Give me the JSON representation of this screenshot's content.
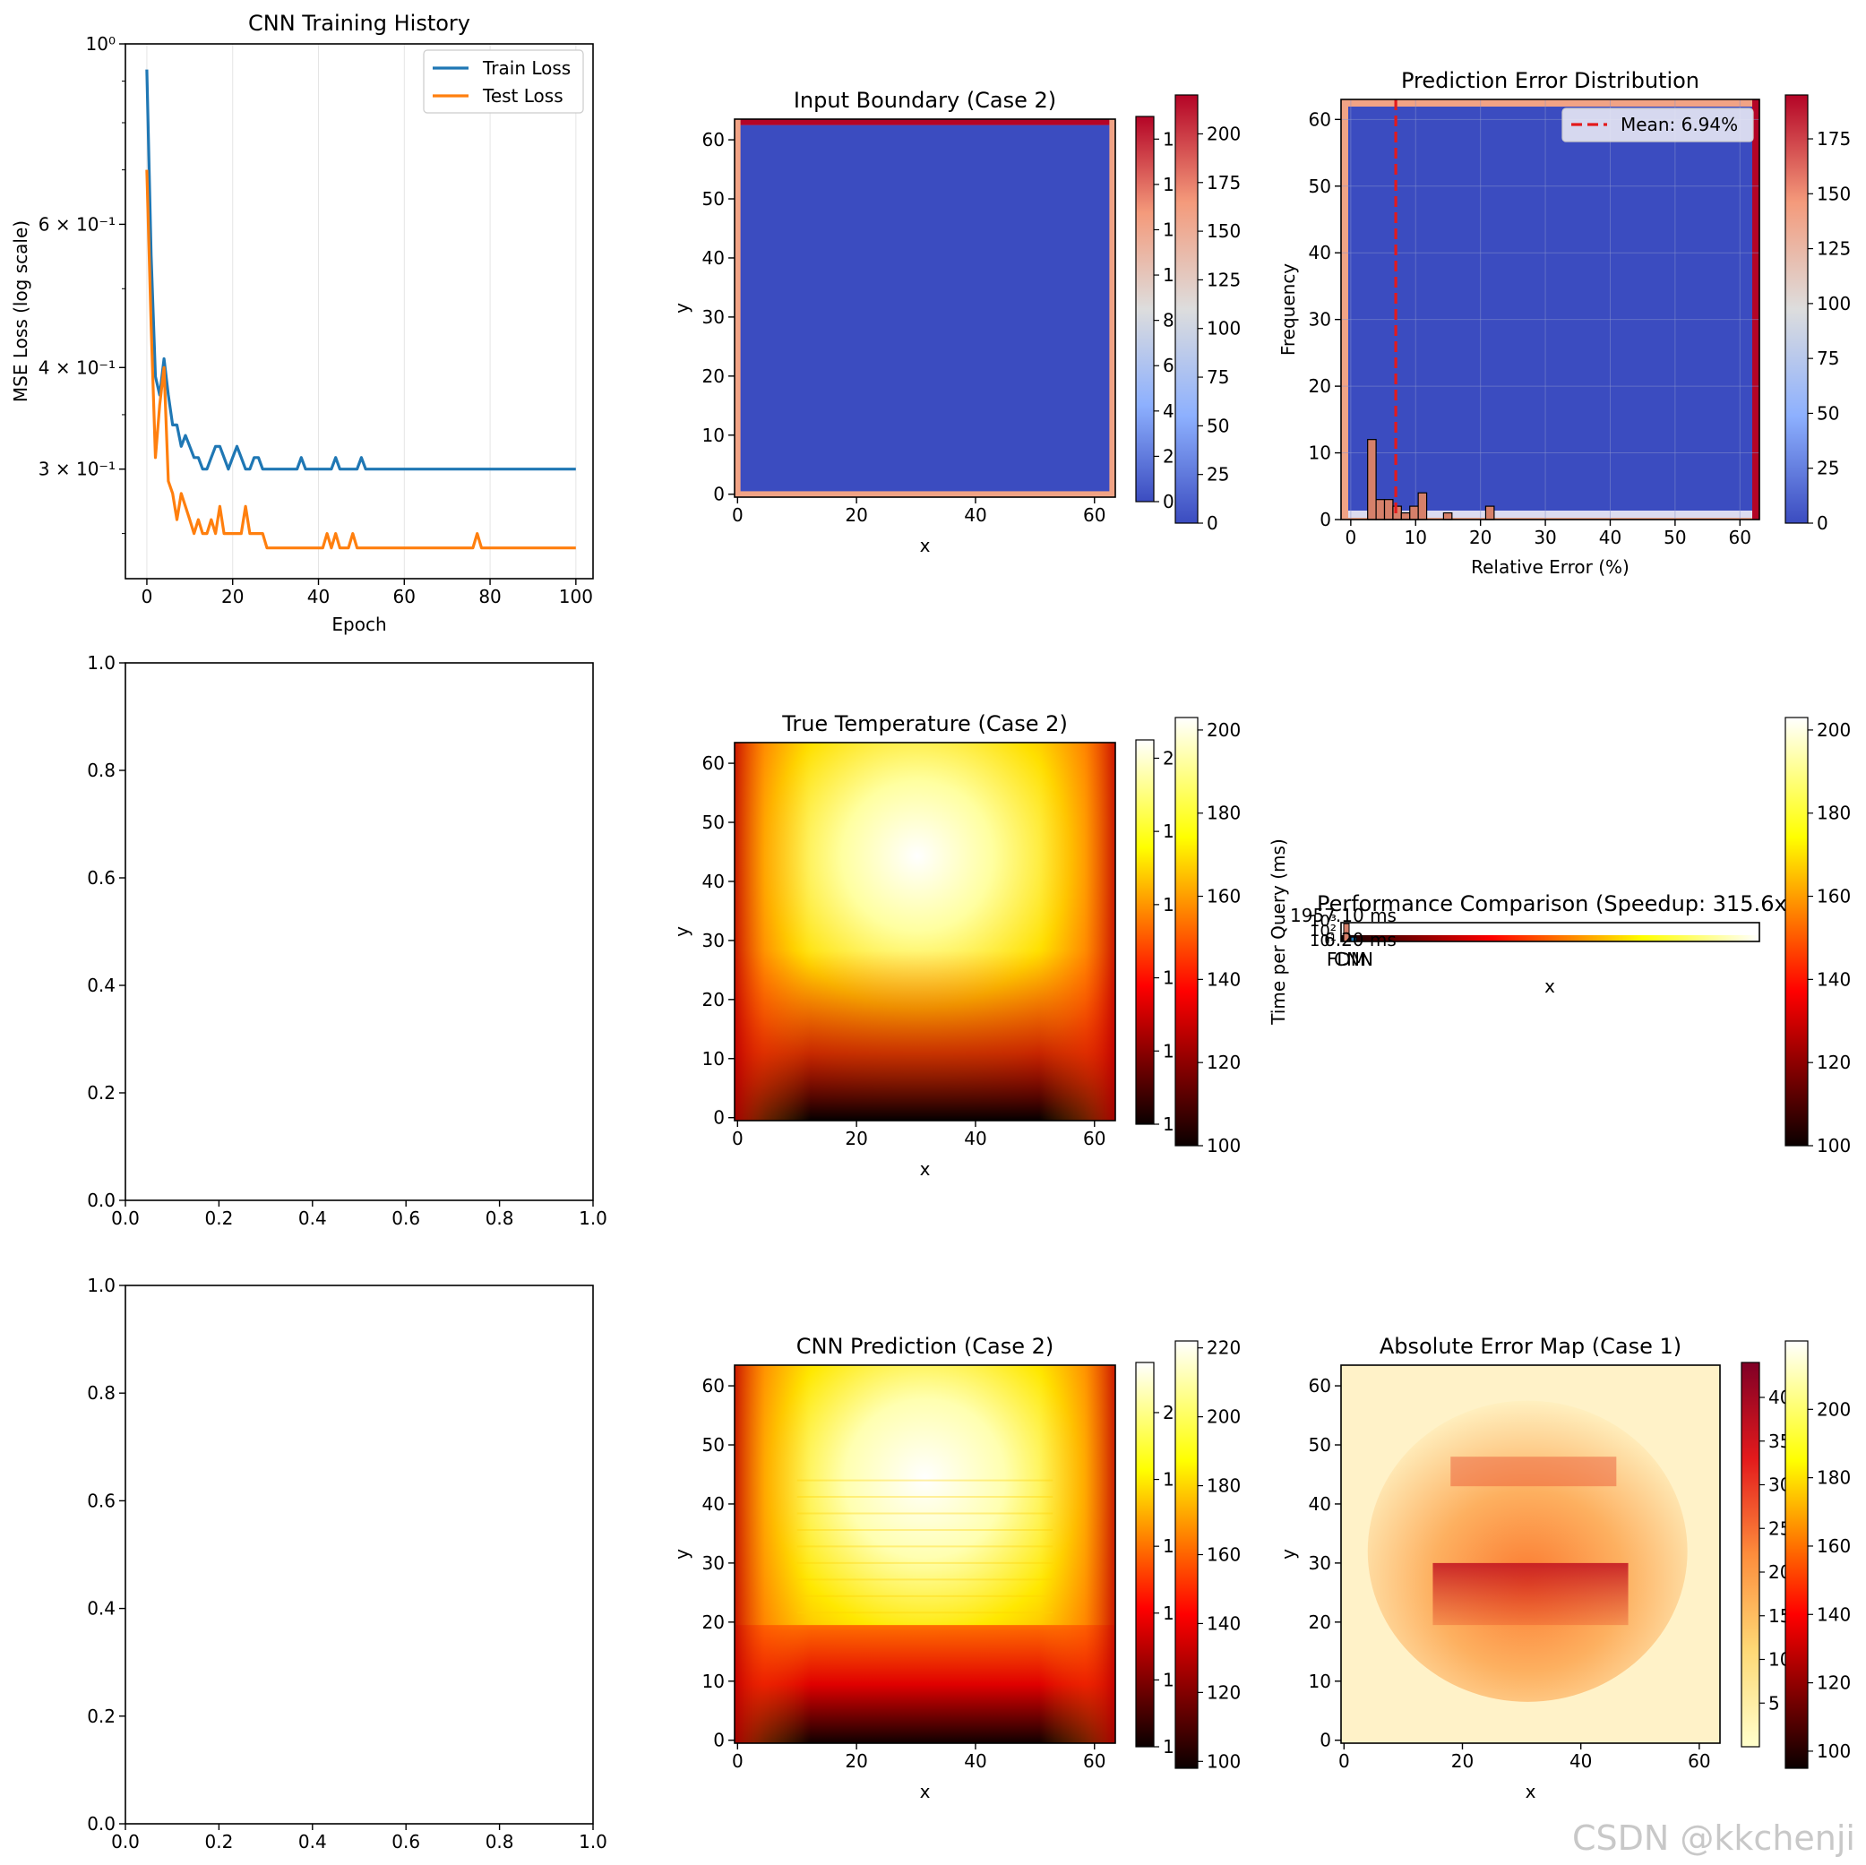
{
  "watermark": "CSDN @kkchenji",
  "colors": {
    "train": "#1f77b4",
    "test": "#ff7f0e",
    "boundary_blue": "#3b4cc0",
    "boundary_salmon": "#f1a385",
    "boundary_red": "#b40426",
    "mean_line": "#e31a1c",
    "hist_bar": "#d6806a",
    "ref_bar": "#1f77b4"
  },
  "chart_data": [
    {
      "id": "training",
      "type": "line",
      "title": "CNN Training History",
      "xlabel": "Epoch",
      "ylabel": "MSE Loss (log scale)",
      "yscale": "log",
      "xlim": [
        -5,
        104
      ],
      "ylim": [
        0.22,
        1.0
      ],
      "xticks": [
        0,
        20,
        40,
        60,
        80,
        100
      ],
      "yticks": [
        {
          "value": 1.0,
          "label": "10⁰"
        },
        {
          "value": 0.6,
          "label": "6 × 10⁻¹"
        },
        {
          "value": 0.4,
          "label": "4 × 10⁻¹"
        },
        {
          "value": 0.3,
          "label": "3 × 10⁻¹"
        }
      ],
      "grid": "x",
      "legend": "upper-right",
      "series": [
        {
          "name": "Train Loss",
          "values": [
            0.93,
            0.55,
            0.39,
            0.37,
            0.41,
            0.37,
            0.34,
            0.34,
            0.32,
            0.33,
            0.32,
            0.31,
            0.31,
            0.3,
            0.3,
            0.31,
            0.32,
            0.32,
            0.31,
            0.3,
            0.31,
            0.32,
            0.31,
            0.3,
            0.3,
            0.31,
            0.31,
            0.3,
            0.3,
            0.3,
            0.3,
            0.3,
            0.3,
            0.3,
            0.3,
            0.3,
            0.31,
            0.3,
            0.3,
            0.3,
            0.3,
            0.3,
            0.3,
            0.3,
            0.31,
            0.3,
            0.3,
            0.3,
            0.3,
            0.3,
            0.31,
            0.3,
            0.3,
            0.3,
            0.3,
            0.3,
            0.3,
            0.3,
            0.3,
            0.3,
            0.3,
            0.3,
            0.3,
            0.3,
            0.3,
            0.3,
            0.3,
            0.3,
            0.3,
            0.3,
            0.3,
            0.3,
            0.3,
            0.3,
            0.3,
            0.3,
            0.3,
            0.3,
            0.3,
            0.3,
            0.3,
            0.3,
            0.3,
            0.3,
            0.3,
            0.3,
            0.3,
            0.3,
            0.3,
            0.3,
            0.3,
            0.3,
            0.3,
            0.3,
            0.3,
            0.3,
            0.3,
            0.3,
            0.3,
            0.3,
            0.3
          ]
        },
        {
          "name": "Test Loss",
          "values": [
            0.7,
            0.45,
            0.31,
            0.36,
            0.4,
            0.29,
            0.28,
            0.26,
            0.28,
            0.27,
            0.26,
            0.25,
            0.26,
            0.25,
            0.25,
            0.26,
            0.25,
            0.27,
            0.25,
            0.25,
            0.25,
            0.25,
            0.25,
            0.27,
            0.25,
            0.25,
            0.25,
            0.25,
            0.24,
            0.24,
            0.24,
            0.24,
            0.24,
            0.24,
            0.24,
            0.24,
            0.24,
            0.24,
            0.24,
            0.24,
            0.24,
            0.24,
            0.25,
            0.24,
            0.25,
            0.24,
            0.24,
            0.24,
            0.25,
            0.24,
            0.24,
            0.24,
            0.24,
            0.24,
            0.24,
            0.24,
            0.24,
            0.24,
            0.24,
            0.24,
            0.24,
            0.24,
            0.24,
            0.24,
            0.24,
            0.24,
            0.24,
            0.24,
            0.24,
            0.24,
            0.24,
            0.24,
            0.24,
            0.24,
            0.24,
            0.24,
            0.24,
            0.25,
            0.24,
            0.24,
            0.24,
            0.24,
            0.24,
            0.24,
            0.24,
            0.24,
            0.24,
            0.24,
            0.24,
            0.24,
            0.24,
            0.24,
            0.24,
            0.24,
            0.24,
            0.24,
            0.24,
            0.24,
            0.24,
            0.24,
            0.24
          ]
        }
      ]
    },
    {
      "id": "boundary",
      "type": "heatmap",
      "title": "Input Boundary (Case 2)",
      "xlabel": "x",
      "ylabel": "y",
      "xlim": [
        0,
        63
      ],
      "ylim": [
        0,
        63
      ],
      "xticks": [
        0,
        20,
        40,
        60
      ],
      "yticks": [
        0,
        10,
        20,
        30,
        40,
        50,
        60
      ],
      "colormap": "coolwarm",
      "colorbars": [
        {
          "min": 0,
          "max": 170,
          "ticks": [
            0,
            20,
            40,
            60,
            80,
            100,
            120,
            140,
            160
          ]
        },
        {
          "min": 0,
          "max": 220,
          "ticks": [
            0,
            25,
            50,
            75,
            100,
            125,
            150,
            175,
            200
          ]
        }
      ]
    },
    {
      "id": "error_hist",
      "type": "bar",
      "title": "Prediction Error Distribution",
      "xlabel": "Relative Error (%)",
      "ylabel": "Frequency",
      "xlim": [
        -1.5,
        63
      ],
      "ylim": [
        0,
        63
      ],
      "xticks": [
        0,
        10,
        20,
        30,
        40,
        50,
        60
      ],
      "yticks": [
        0,
        10,
        20,
        30,
        40,
        50,
        60
      ],
      "bins": [
        {
          "x0": 2.6,
          "x1": 3.9,
          "count": 12
        },
        {
          "x0": 3.9,
          "x1": 5.2,
          "count": 3
        },
        {
          "x0": 5.2,
          "x1": 6.5,
          "count": 3
        },
        {
          "x0": 6.5,
          "x1": 7.8,
          "count": 2
        },
        {
          "x0": 7.8,
          "x1": 9.1,
          "count": 1
        },
        {
          "x0": 9.1,
          "x1": 10.4,
          "count": 2
        },
        {
          "x0": 10.4,
          "x1": 11.7,
          "count": 4
        },
        {
          "x0": 14.3,
          "x1": 15.6,
          "count": 1
        },
        {
          "x0": 20.8,
          "x1": 22.1,
          "count": 2
        }
      ],
      "mean": 6.94,
      "legend": "Mean: 6.94%",
      "colorbar": {
        "min": 0,
        "max": 195,
        "ticks": [
          0,
          25,
          50,
          75,
          100,
          125,
          150,
          175
        ]
      }
    },
    {
      "id": "empty1",
      "type": "line",
      "xlim": [
        0,
        1
      ],
      "ylim": [
        0,
        1
      ],
      "xticks": [
        "0.0",
        "0.2",
        "0.4",
        "0.6",
        "0.8",
        "1.0"
      ],
      "yticks": [
        "0.0",
        "0.2",
        "0.4",
        "0.6",
        "0.8",
        "1.0"
      ]
    },
    {
      "id": "true_temp",
      "type": "heatmap",
      "title": "True Temperature (Case 2)",
      "xlabel": "x",
      "ylabel": "y",
      "xlim": [
        0,
        63
      ],
      "ylim": [
        0,
        63
      ],
      "xticks": [
        0,
        20,
        40,
        60
      ],
      "yticks": [
        0,
        10,
        20,
        30,
        40,
        50,
        60
      ],
      "colormap": "hot",
      "colorbars": [
        {
          "min": 100,
          "max": 205,
          "ticks": [
            100,
            120,
            140,
            160,
            180,
            200
          ]
        },
        {
          "min": 100,
          "max": 203,
          "ticks": [
            100,
            120,
            140,
            160,
            180,
            200
          ]
        }
      ]
    },
    {
      "id": "performance",
      "type": "bar",
      "title": "Performance Comparison (Speedup: 315.6x)",
      "xlabel": "x",
      "ylabel": "Time per Query (ms)",
      "categories": [
        "FDM",
        "CNN"
      ],
      "values_ms": [
        1957.1,
        6.2
      ],
      "annotations": [
        "1957.10 ms",
        "6.20 ms"
      ],
      "yticks": [
        "10³",
        "10²",
        "10¹"
      ],
      "colorbar": {
        "min": 100,
        "max": 203,
        "ticks": [
          100,
          120,
          140,
          160,
          180,
          200
        ]
      }
    },
    {
      "id": "empty2",
      "type": "line",
      "xlim": [
        0,
        1
      ],
      "ylim": [
        0,
        1
      ],
      "xticks": [
        "0.0",
        "0.2",
        "0.4",
        "0.6",
        "0.8",
        "1.0"
      ],
      "yticks": [
        "0.0",
        "0.2",
        "0.4",
        "0.6",
        "0.8",
        "1.0"
      ]
    },
    {
      "id": "cnn_pred",
      "type": "heatmap",
      "title": "CNN Prediction (Case 2)",
      "xlabel": "x",
      "ylabel": "y",
      "xlim": [
        0,
        63
      ],
      "ylim": [
        0,
        63
      ],
      "xticks": [
        0,
        20,
        40,
        60
      ],
      "yticks": [
        0,
        10,
        20,
        30,
        40,
        50,
        60
      ],
      "colormap": "hot",
      "colorbars": [
        {
          "min": 100,
          "max": 215,
          "ticks": [
            100,
            120,
            140,
            160,
            180,
            200
          ]
        },
        {
          "min": 98,
          "max": 222,
          "ticks": [
            100,
            120,
            140,
            160,
            180,
            200,
            220
          ]
        }
      ]
    },
    {
      "id": "abs_error",
      "type": "heatmap",
      "title": "Absolute Error Map (Case 1)",
      "xlabel": "x",
      "ylabel": "y",
      "xlim": [
        0,
        63
      ],
      "ylim": [
        0,
        63
      ],
      "xticks": [
        0,
        20,
        40,
        60
      ],
      "yticks": [
        0,
        10,
        20,
        30,
        40,
        50,
        60
      ],
      "colormap": "YlOrRd",
      "colorbars": [
        {
          "min": 0,
          "max": 44,
          "ticks": [
            5,
            10,
            15,
            20,
            25,
            30,
            35,
            40
          ]
        },
        {
          "min": 95,
          "max": 220,
          "ticks": [
            100,
            120,
            140,
            160,
            180,
            200
          ]
        }
      ]
    }
  ]
}
